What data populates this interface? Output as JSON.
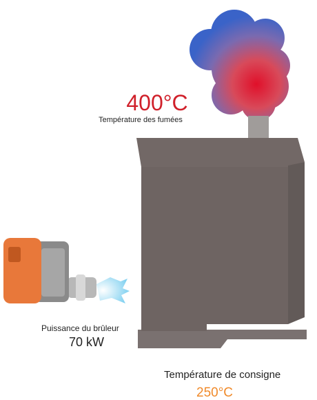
{
  "flue_temperature": {
    "value": "400°C",
    "label": "Température des fumées"
  },
  "burner": {
    "label": "Puissance du brûleur",
    "value": "70 kW"
  },
  "setpoint": {
    "label": "Température de consigne",
    "value": "250°C"
  }
}
